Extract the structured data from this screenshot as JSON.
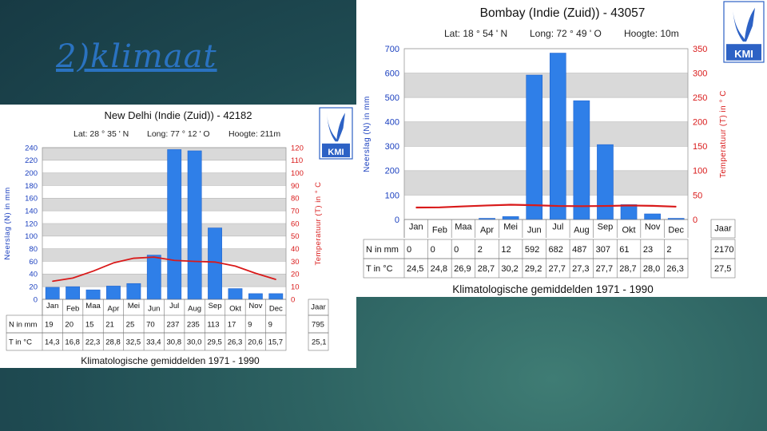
{
  "slide": {
    "title": "2)klimaat"
  },
  "logo_text": "KMI",
  "colors": {
    "bar": "#2f7fe8",
    "line": "#d91a1a",
    "axis_left": "#1a3fbf",
    "axis_right": "#d91a1a",
    "plot_bg": "#d9d9d9"
  },
  "chart_data": [
    {
      "type": "bar",
      "title": "New Delhi (Indie (Zuid)) - 42182",
      "subtitle": {
        "lat": "Lat: 28 ° 35 ' N",
        "long": "Long: 77 ° 12 ' O",
        "alt": "Hoogte: 211m"
      },
      "categories": [
        "Jan",
        "Feb",
        "Maa",
        "Apr",
        "Mei",
        "Jun",
        "Jul",
        "Aug",
        "Sep",
        "Okt",
        "Nov",
        "Dec"
      ],
      "category_labels": [
        "Jan",
        "Feb",
        "Maa",
        "Apr",
        "Mei",
        "Jun",
        "Jul",
        "Aug",
        "Sep",
        "Okt",
        "Nov",
        "Dec"
      ],
      "series": [
        {
          "name": "Neerslag (N) in mm",
          "axis": "left",
          "type": "bar",
          "values": [
            19,
            20,
            15,
            21,
            25,
            70,
            237,
            235,
            113,
            17,
            9,
            9
          ]
        },
        {
          "name": "Temperatuur (T) in °C",
          "axis": "right",
          "type": "line",
          "values": [
            14.3,
            16.8,
            22.3,
            28.8,
            32.5,
            33.4,
            30.8,
            30.0,
            29.5,
            26.3,
            20.6,
            15.7
          ]
        }
      ],
      "ylabel": "Neerslag (N) in mm",
      "y2label": "Temperatuur (T) in ° C",
      "ylim": [
        0,
        240
      ],
      "y2lim": [
        0,
        120
      ],
      "yticks": [
        0,
        20,
        40,
        60,
        80,
        100,
        120,
        140,
        160,
        180,
        200,
        220,
        240
      ],
      "y2ticks": [
        0,
        10,
        20,
        30,
        40,
        50,
        60,
        70,
        80,
        90,
        100,
        110,
        120
      ],
      "table": {
        "year_header": "Jaar",
        "rows": [
          {
            "label": "N in mm",
            "cells": [
              "19",
              "20",
              "15",
              "21",
              "25",
              "70",
              "237",
              "235",
              "113",
              "17",
              "9",
              "9"
            ],
            "year": "795"
          },
          {
            "label": "T in °C",
            "cells": [
              "14,3",
              "16,8",
              "22,3",
              "28,8",
              "32,5",
              "33,4",
              "30,8",
              "30,0",
              "29,5",
              "26,3",
              "20,6",
              "15,7"
            ],
            "year": "25,1"
          }
        ]
      },
      "footer": "Klimatologische gemiddelden 1971 - 1990",
      "grid": true
    },
    {
      "type": "bar",
      "title": "Bombay (Indie (Zuid)) - 43057",
      "subtitle": {
        "lat": "Lat: 18 ° 54 ' N",
        "long": "Long: 72 ° 49 ' O",
        "alt": "Hoogte: 10m"
      },
      "categories": [
        "Jan",
        "Feb",
        "Maa",
        "Apr",
        "Mei",
        "Jun",
        "Jul",
        "Aug",
        "Sep",
        "Okt",
        "Nov",
        "Dec"
      ],
      "category_labels": [
        "Jan",
        "Feb",
        "Maa",
        "Apr",
        "Mei",
        "Jun",
        "Jul",
        "Aug",
        "Sep",
        "Okt",
        "Nov",
        "Dec"
      ],
      "series": [
        {
          "name": "Neerslag (N) in mm",
          "axis": "left",
          "type": "bar",
          "values": [
            0,
            0,
            0,
            2,
            12,
            592,
            682,
            487,
            307,
            61,
            23,
            2
          ]
        },
        {
          "name": "Temperatuur (T) in °C",
          "axis": "right",
          "type": "line",
          "values": [
            24.5,
            24.8,
            26.9,
            28.7,
            30.2,
            29.2,
            27.7,
            27.3,
            27.7,
            28.7,
            28.0,
            26.3
          ]
        }
      ],
      "ylabel": "Neerslag (N) in mm",
      "y2label": "Temperatuur (T) in ° C",
      "ylim": [
        0,
        700
      ],
      "y2lim": [
        0,
        350
      ],
      "yticks": [
        0,
        100,
        200,
        300,
        400,
        500,
        600,
        700
      ],
      "y2ticks": [
        0,
        50,
        100,
        150,
        200,
        250,
        300,
        350
      ],
      "table": {
        "year_header": "Jaar",
        "rows": [
          {
            "label": "N in mm",
            "cells": [
              "0",
              "0",
              "0",
              "2",
              "12",
              "592",
              "682",
              "487",
              "307",
              "61",
              "23",
              "2"
            ],
            "year": "2170"
          },
          {
            "label": "T in °C",
            "cells": [
              "24,5",
              "24,8",
              "26,9",
              "28,7",
              "30,2",
              "29,2",
              "27,7",
              "27,3",
              "27,7",
              "28,7",
              "28,0",
              "26,3"
            ],
            "year": "27,5"
          }
        ]
      },
      "footer": "Klimatologische gemiddelden 1971 - 1990",
      "grid": true
    }
  ]
}
